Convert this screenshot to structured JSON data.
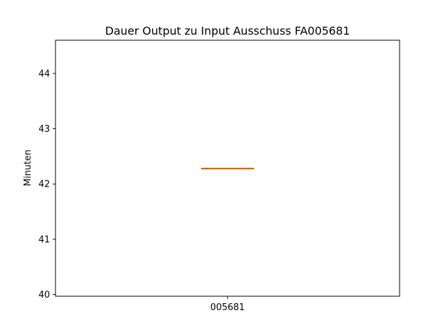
{
  "chart_data": {
    "type": "boxplot",
    "title": "Dauer Output zu Input Ausschuss FA005681",
    "xlabel": "",
    "ylabel": "Minuten",
    "categories": [
      "005681"
    ],
    "series": [
      {
        "values": [
          {
            "min": 42.28,
            "q1": 42.28,
            "median": 42.28,
            "q3": 42.28,
            "max": 42.28
          }
        ]
      }
    ],
    "ylim": [
      39.97,
      44.6
    ],
    "yticks": [
      "40",
      "41",
      "42",
      "43",
      "44"
    ],
    "grid": false,
    "colors": {
      "box": "#000000",
      "median": "#ff7f0e",
      "axes": "#000000"
    }
  }
}
